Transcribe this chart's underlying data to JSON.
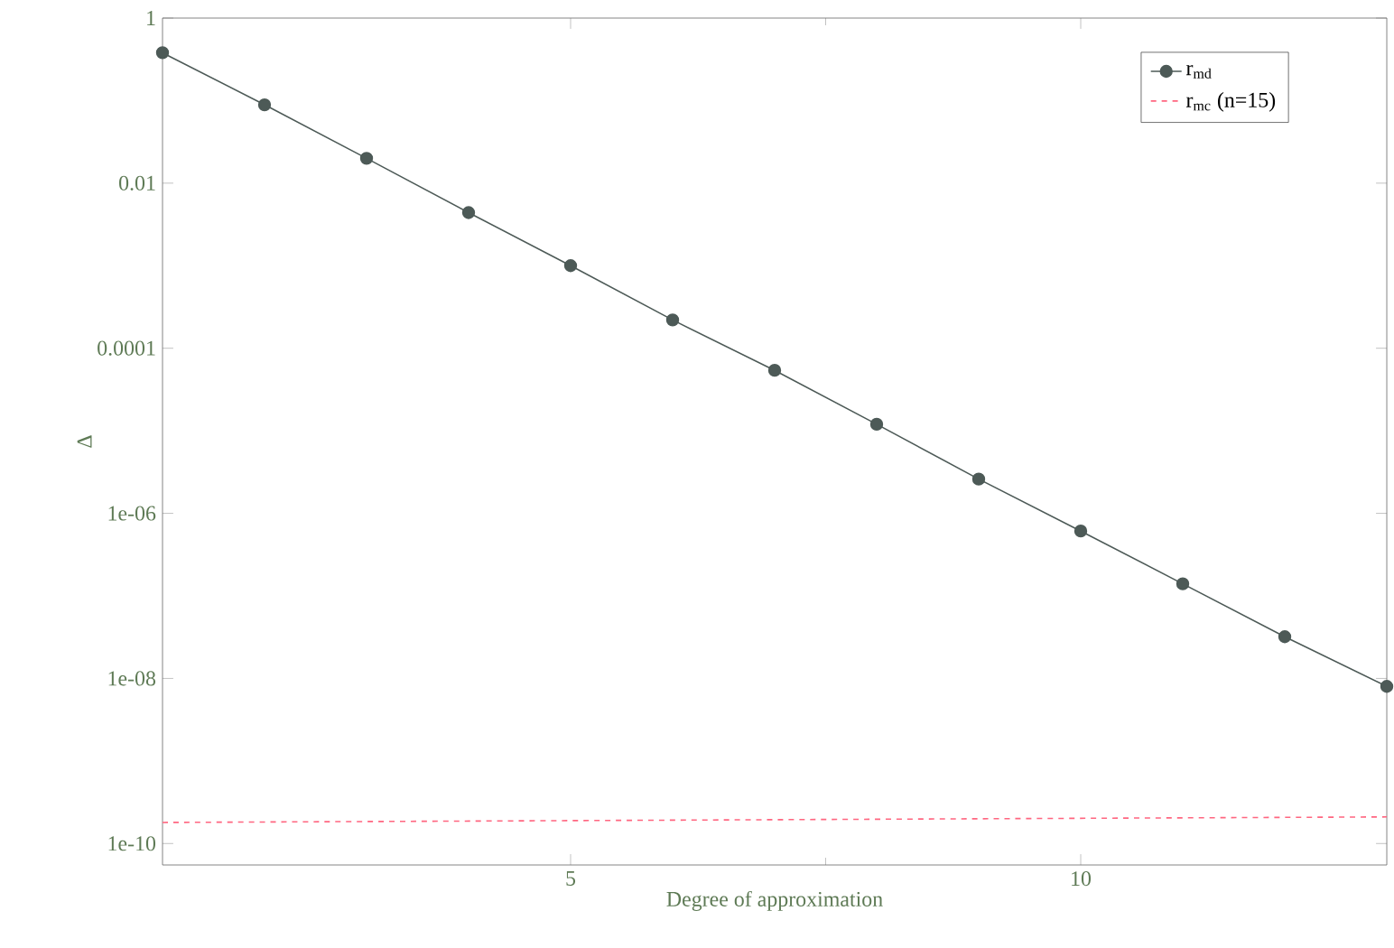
{
  "chart_data": {
    "type": "line",
    "xlabel": "Degree of approximation",
    "ylabel": "Δ",
    "log": "y",
    "legend": "top right",
    "xlim": [
      1,
      13
    ],
    "xticks": [
      5,
      10
    ],
    "ylim": [
      5.5e-11,
      1
    ],
    "yticks": [
      {
        "value": 1e-10,
        "label": "1e-10"
      },
      {
        "value": 1e-08,
        "label": "1e-08"
      },
      {
        "value": 1e-06,
        "label": "1e-06"
      },
      {
        "value": 0.0001,
        "label": "0.0001"
      },
      {
        "value": 0.01,
        "label": "0.01"
      },
      {
        "value": 1,
        "label": "1"
      }
    ],
    "series": [
      {
        "name": "r$_{md}$",
        "color": "#4d5a57",
        "marker": "circle",
        "line_style": "solid",
        "x": [
          1,
          2,
          3,
          4,
          5,
          6,
          7,
          8,
          9,
          10,
          11,
          12,
          13
        ],
        "values": [
          0.38,
          0.089,
          0.02,
          0.0044,
          0.001,
          0.00022,
          5.4e-05,
          1.2e-05,
          2.6e-06,
          6.1e-07,
          1.4e-07,
          3.2e-08,
          8e-09
        ]
      },
      {
        "name": "r$_{mc}$ (n=15)",
        "color": "#ff6680",
        "marker": "none",
        "line_style": "dashed",
        "x": [
          1,
          13
        ],
        "values": [
          1.8e-10,
          2.1e-10
        ]
      }
    ]
  }
}
